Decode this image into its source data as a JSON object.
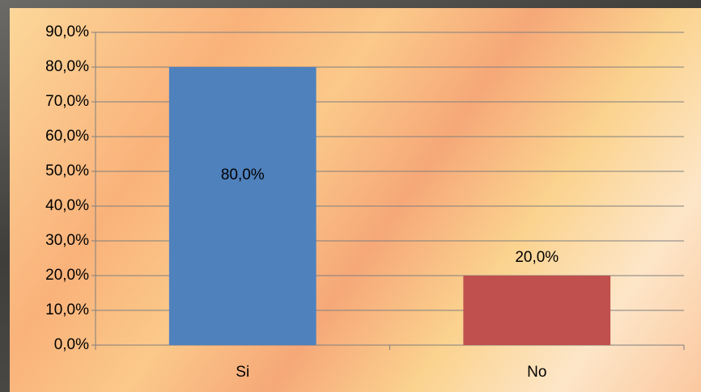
{
  "chart_data": {
    "type": "bar",
    "categories": [
      "Si",
      "No"
    ],
    "values": [
      80,
      20
    ],
    "value_labels": [
      "80,0%",
      "20,0%"
    ],
    "colors": [
      "#4f81bd",
      "#c0504d"
    ],
    "ylim": [
      0,
      90
    ],
    "yticks": [
      {
        "value": 0,
        "label": "0,0%"
      },
      {
        "value": 10,
        "label": "10,0%"
      },
      {
        "value": 20,
        "label": "20,0%"
      },
      {
        "value": 30,
        "label": "30,0%"
      },
      {
        "value": 40,
        "label": "40,0%"
      },
      {
        "value": 50,
        "label": "50,0%"
      },
      {
        "value": 60,
        "label": "60,0%"
      },
      {
        "value": 70,
        "label": "70,0%"
      },
      {
        "value": 80,
        "label": "80,0%"
      },
      {
        "value": 90,
        "label": "90,0%"
      }
    ],
    "grid": true
  }
}
